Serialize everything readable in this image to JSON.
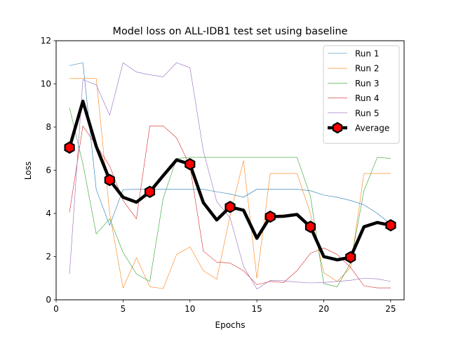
{
  "chart_data": {
    "type": "line",
    "title": "Model loss on ALL-IDB1 test set using baseline",
    "xlabel": "Epochs",
    "ylabel": "Loss",
    "xlim": [
      0,
      26
    ],
    "ylim": [
      0,
      12
    ],
    "x_ticks": [
      0,
      5,
      10,
      15,
      20,
      25
    ],
    "y_ticks": [
      0,
      2,
      4,
      6,
      8,
      10,
      12
    ],
    "grid": false,
    "legend_position": "top-right",
    "x": [
      1,
      2,
      3,
      4,
      5,
      6,
      7,
      8,
      9,
      10,
      11,
      12,
      13,
      14,
      15,
      16,
      17,
      18,
      19,
      20,
      21,
      22,
      23,
      24,
      25
    ],
    "series": [
      {
        "name": "Run 1",
        "color": "#1f77b4",
        "style": "thin",
        "values": [
          10.85,
          10.98,
          5.1,
          3.45,
          5.1,
          5.12,
          5.12,
          5.12,
          5.12,
          5.12,
          5.12,
          5.0,
          4.9,
          4.75,
          5.12,
          5.12,
          5.12,
          5.12,
          5.05,
          4.85,
          4.75,
          4.6,
          4.4,
          4.0,
          3.5
        ]
      },
      {
        "name": "Run 2",
        "color": "#ff7f0e",
        "style": "thin",
        "values": [
          10.25,
          10.25,
          10.25,
          4.0,
          0.55,
          1.95,
          0.6,
          0.52,
          2.1,
          2.45,
          1.35,
          0.95,
          3.9,
          6.45,
          1.0,
          5.85,
          5.85,
          5.85,
          4.0,
          1.25,
          0.85,
          1.5,
          5.85,
          5.85,
          5.85
        ]
      },
      {
        "name": "Run 3",
        "color": "#2ca02c",
        "style": "thin",
        "values": [
          8.9,
          6.3,
          3.05,
          3.75,
          2.2,
          1.2,
          0.85,
          4.7,
          6.55,
          6.6,
          6.6,
          6.6,
          6.6,
          6.6,
          6.6,
          6.6,
          6.6,
          6.6,
          4.8,
          0.75,
          0.6,
          1.7,
          5.05,
          6.6,
          6.55
        ]
      },
      {
        "name": "Run 4",
        "color": "#d62728",
        "style": "thin",
        "values": [
          4.05,
          8.05,
          7.15,
          6.2,
          4.6,
          3.75,
          8.05,
          8.05,
          7.5,
          6.2,
          2.25,
          1.75,
          1.7,
          1.35,
          0.7,
          0.85,
          0.8,
          1.35,
          2.15,
          2.4,
          2.1,
          1.5,
          0.65,
          0.55,
          0.55
        ]
      },
      {
        "name": "Run 5",
        "color": "#9467bd",
        "style": "thin",
        "values": [
          1.2,
          10.2,
          9.95,
          8.55,
          10.98,
          10.55,
          10.42,
          10.33,
          10.98,
          10.75,
          6.9,
          4.55,
          3.8,
          1.55,
          0.5,
          0.9,
          0.88,
          0.82,
          0.78,
          0.8,
          0.85,
          0.9,
          1.0,
          0.97,
          0.85
        ]
      },
      {
        "name": "Average",
        "color": "#000000",
        "style": "thick",
        "marker": "hexagon",
        "marker_face": "#ff0000",
        "marker_edge": "#000000",
        "marker_every": 3,
        "values": [
          7.05,
          9.2,
          7.1,
          5.55,
          4.75,
          4.52,
          5.0,
          5.75,
          6.48,
          6.28,
          4.5,
          3.7,
          4.3,
          4.15,
          2.85,
          3.85,
          3.87,
          3.95,
          3.38,
          2.0,
          1.85,
          1.97,
          3.38,
          3.58,
          3.45
        ]
      }
    ]
  }
}
